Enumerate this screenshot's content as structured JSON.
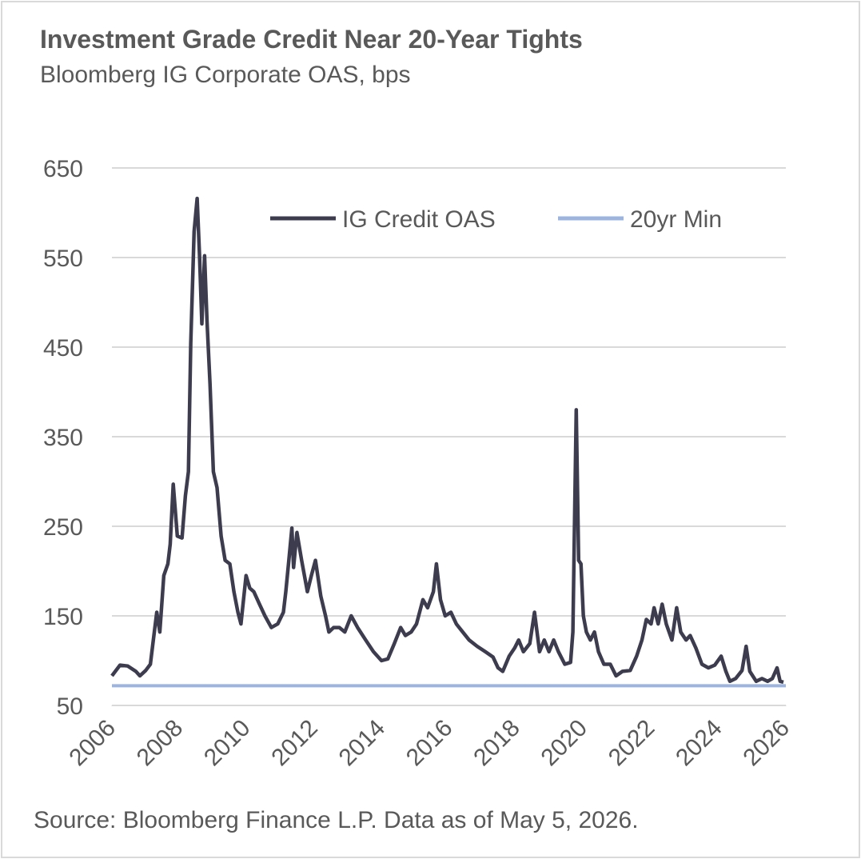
{
  "chart_data": {
    "type": "line",
    "title": "Investment Grade Credit Near 20-Year Tights",
    "subtitle": "Bloomberg IG Corporate OAS, bps",
    "source": "Source: Bloomberg Finance L.P. Data as of May 5, 2026.",
    "xlim": [
      2006,
      2026
    ],
    "xticks": [
      2006,
      2008,
      2010,
      2012,
      2014,
      2016,
      2018,
      2020,
      2022,
      2024,
      2026
    ],
    "ylim": [
      50,
      650
    ],
    "yticks": [
      50,
      150,
      250,
      350,
      450,
      550,
      650
    ],
    "grid": true,
    "legend": "top",
    "series": [
      {
        "name": "IG Credit OAS",
        "color": "#3d3c4f",
        "x": [
          2006.0,
          2006.24,
          2006.47,
          2006.71,
          2006.83,
          2007.0,
          2007.14,
          2007.23,
          2007.33,
          2007.42,
          2007.54,
          2007.66,
          2007.73,
          2007.82,
          2007.94,
          2008.08,
          2008.18,
          2008.27,
          2008.34,
          2008.44,
          2008.53,
          2008.6,
          2008.67,
          2008.75,
          2008.82,
          2008.91,
          2009.01,
          2009.12,
          2009.24,
          2009.36,
          2009.5,
          2009.62,
          2009.74,
          2009.83,
          2009.98,
          2010.09,
          2010.21,
          2010.38,
          2010.54,
          2010.73,
          2010.92,
          2011.09,
          2011.16,
          2011.25,
          2011.34,
          2011.39,
          2011.49,
          2011.63,
          2011.8,
          2011.92,
          2012.04,
          2012.2,
          2012.34,
          2012.44,
          2012.58,
          2012.75,
          2012.91,
          2013.1,
          2013.29,
          2013.53,
          2013.76,
          2014.0,
          2014.19,
          2014.38,
          2014.57,
          2014.71,
          2014.88,
          2015.04,
          2015.23,
          2015.37,
          2015.54,
          2015.63,
          2015.75,
          2015.89,
          2016.06,
          2016.22,
          2016.41,
          2016.6,
          2016.84,
          2017.08,
          2017.31,
          2017.46,
          2017.6,
          2017.79,
          2017.95,
          2018.07,
          2018.21,
          2018.4,
          2018.54,
          2018.69,
          2018.83,
          2018.97,
          2019.11,
          2019.25,
          2019.44,
          2019.61,
          2019.68,
          2019.78,
          2019.85,
          2019.92,
          2019.99,
          2020.08,
          2020.2,
          2020.32,
          2020.44,
          2020.6,
          2020.79,
          2020.96,
          2021.15,
          2021.38,
          2021.57,
          2021.73,
          2021.86,
          2022.0,
          2022.09,
          2022.21,
          2022.33,
          2022.45,
          2022.62,
          2022.76,
          2022.88,
          2023.04,
          2023.16,
          2023.33,
          2023.51,
          2023.7,
          2023.89,
          2024.08,
          2024.22,
          2024.34,
          2024.51,
          2024.7,
          2024.82,
          2024.93,
          2025.12,
          2025.29,
          2025.46,
          2025.6,
          2025.74,
          2025.83,
          2025.93
        ],
        "values": [
          83,
          95,
          94,
          88,
          83,
          89,
          96,
          123,
          154,
          132,
          195,
          208,
          230,
          297,
          239,
          237,
          284,
          311,
          454,
          579,
          616,
          552,
          476,
          552,
          480,
          409,
          311,
          293,
          239,
          212,
          208,
          177,
          154,
          141,
          195,
          181,
          177,
          163,
          150,
          137,
          141,
          154,
          177,
          212,
          248,
          204,
          243,
          212,
          177,
          195,
          212,
          172,
          150,
          132,
          137,
          137,
          132,
          150,
          137,
          123,
          110,
          100,
          102,
          119,
          137,
          128,
          132,
          141,
          168,
          159,
          177,
          208,
          168,
          150,
          154,
          141,
          132,
          123,
          116,
          110,
          104,
          92,
          88,
          105,
          114,
          123,
          110,
          119,
          154,
          110,
          123,
          110,
          123,
          110,
          96,
          98,
          132,
          380,
          212,
          208,
          150,
          132,
          123,
          132,
          110,
          96,
          96,
          83,
          88,
          89,
          105,
          123,
          146,
          141,
          159,
          141,
          163,
          141,
          123,
          159,
          132,
          123,
          128,
          114,
          96,
          92,
          95,
          105,
          88,
          77,
          80,
          89,
          116,
          88,
          77,
          80,
          77,
          80,
          92,
          77,
          76
        ]
      },
      {
        "name": "20yr Min",
        "color": "#9db4df",
        "x": [
          2006,
          2026
        ],
        "values": [
          72,
          72
        ]
      }
    ]
  }
}
